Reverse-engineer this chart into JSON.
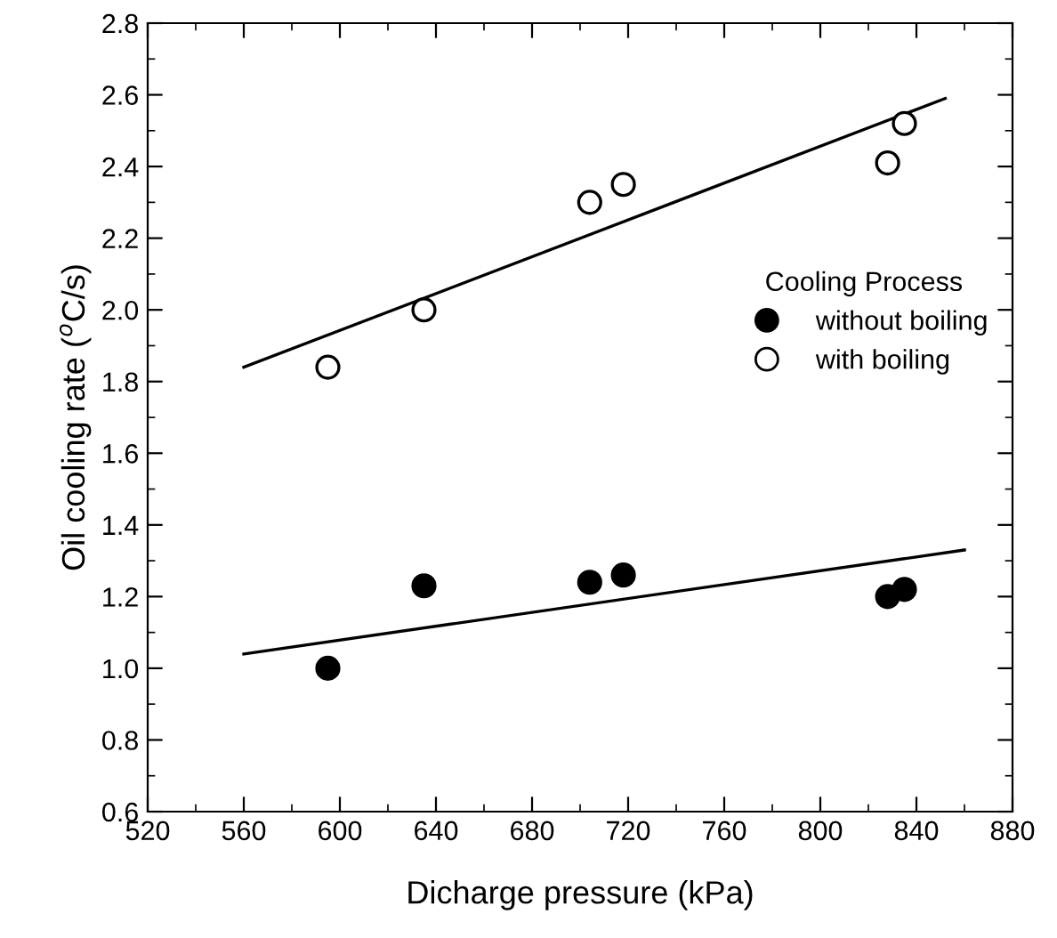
{
  "chart_data": {
    "type": "scatter",
    "xlabel": "Dicharge pressure (kPa)",
    "ylabel": "Oil cooling rate ($^{o}$C/s)",
    "legend_title": "Cooling Process",
    "legend": "right",
    "grid": false,
    "marker": "circle",
    "xlim": [
      520,
      880
    ],
    "ylim": [
      0.6,
      2.8
    ],
    "xticks": [
      520,
      {
        "value": 540,
        "label": null
      },
      560,
      {
        "value": 580,
        "label": null
      },
      600,
      {
        "value": 620,
        "label": null
      },
      640,
      {
        "value": 660,
        "label": null
      },
      680,
      {
        "value": 700,
        "label": null
      },
      720,
      {
        "value": 740,
        "label": null
      },
      760,
      {
        "value": 780,
        "label": null
      },
      800,
      {
        "value": 820,
        "label": null
      },
      840,
      {
        "value": 860,
        "label": null
      },
      880
    ],
    "yticks": [
      {
        "value": 0.6,
        "label": "0.6"
      },
      {
        "value": 0.7,
        "label": null
      },
      {
        "value": 0.8,
        "label": "0.8"
      },
      {
        "value": 0.9,
        "label": null
      },
      {
        "value": 1.0,
        "label": "1.0"
      },
      {
        "value": 1.1,
        "label": null
      },
      {
        "value": 1.2,
        "label": "1.2"
      },
      {
        "value": 1.3,
        "label": null
      },
      {
        "value": 1.4,
        "label": "1.4"
      },
      {
        "value": 1.5,
        "label": null
      },
      {
        "value": 1.6,
        "label": "1.6"
      },
      {
        "value": 1.7,
        "label": null
      },
      {
        "value": 1.8,
        "label": "1.8"
      },
      {
        "value": 1.9,
        "label": null
      },
      {
        "value": 2.0,
        "label": "2.0"
      },
      {
        "value": 2.1,
        "label": null
      },
      {
        "value": 2.2,
        "label": "2.2"
      },
      {
        "value": 2.3,
        "label": null
      },
      {
        "value": 2.4,
        "label": "2.4"
      },
      {
        "value": 2.5,
        "label": null
      },
      {
        "value": 2.6,
        "label": "2.6"
      },
      {
        "value": 2.7,
        "label": null
      },
      {
        "value": 2.8,
        "label": "2.8"
      }
    ],
    "series": [
      {
        "name": "without boiling",
        "color": "#000000",
        "x": [
          595,
          635,
          704,
          718,
          828,
          835
        ],
        "values": [
          1.0,
          1.23,
          1.24,
          1.26,
          1.2,
          1.22
        ]
      },
      {
        "name": "with boiling",
        "color": "#ffffff",
        "x": [
          595,
          635,
          704,
          718,
          828,
          835
        ],
        "values": [
          1.84,
          2.0,
          2.3,
          2.35,
          2.41,
          2.52
        ]
      },
      {
        "type": "line",
        "marker": "none",
        "color": "#000000",
        "x": [
          560,
          860
        ],
        "values": [
          1.04,
          1.33
        ]
      },
      {
        "type": "line",
        "marker": "none",
        "color": "#000000",
        "x": [
          560,
          852
        ],
        "values": [
          1.84,
          2.59
        ]
      }
    ]
  }
}
